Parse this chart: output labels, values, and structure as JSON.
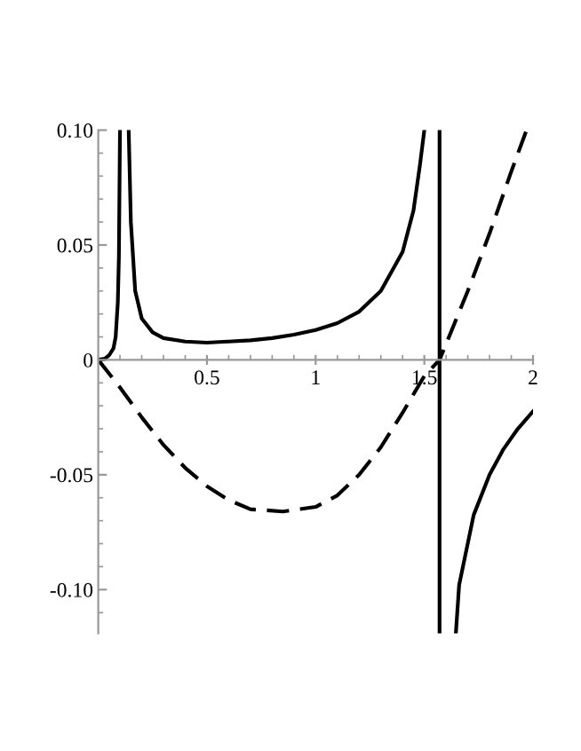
{
  "chart_data": {
    "type": "line",
    "xlim": [
      0,
      2
    ],
    "ylim": [
      -0.119,
      0.1
    ],
    "xticks": [
      0.5,
      1,
      1.5,
      2
    ],
    "yticks": [
      {
        "value": -0.1,
        "label": "-0.10"
      },
      {
        "value": -0.05,
        "label": "-0.05"
      },
      0,
      {
        "value": 0.05,
        "label": "0.05"
      },
      {
        "value": 0.1,
        "label": "0.10"
      }
    ],
    "grid": false,
    "legend": false,
    "series": [
      {
        "color": "#000000",
        "line_style": "solid",
        "x": [
          0,
          0.03,
          0.05,
          0.07,
          0.08,
          0.09,
          0.095,
          0.1,
          0.12,
          0.14,
          0.15,
          0.17,
          0.2,
          0.25,
          0.3,
          0.4,
          0.5,
          0.6,
          0.7,
          0.8,
          0.9,
          1.0,
          1.1,
          1.2,
          1.3,
          1.4,
          1.45,
          1.48,
          1.5,
          1.6,
          1.645,
          1.66,
          1.727,
          1.8,
          1.863,
          1.93,
          2.0
        ],
        "values": [
          0,
          0.0005,
          0.002,
          0.005,
          0.01,
          0.025,
          0.045,
          0.1,
          null,
          0.1,
          0.06,
          0.03,
          0.018,
          0.012,
          0.0095,
          0.008,
          0.0075,
          0.008,
          0.0085,
          0.0095,
          0.011,
          0.013,
          0.016,
          0.021,
          0.03,
          0.047,
          0.065,
          0.085,
          0.1,
          null,
          -0.119,
          -0.098,
          -0.0675,
          -0.05,
          -0.039,
          -0.03,
          -0.0224
        ]
      },
      {
        "color": "#000000",
        "line_style": "dashed",
        "x": [
          0,
          0.1,
          0.2,
          0.3,
          0.4,
          0.5,
          0.6,
          0.7,
          0.85,
          1.0,
          1.1,
          1.2,
          1.3,
          1.4,
          1.5,
          1.57,
          1.7,
          1.8,
          1.9,
          1.97
        ],
        "values": [
          0,
          -0.012,
          -0.025,
          -0.037,
          -0.047,
          -0.055,
          -0.061,
          -0.065,
          -0.066,
          -0.064,
          -0.059,
          -0.05,
          -0.038,
          -0.023,
          -0.007,
          0.0,
          0.03,
          0.055,
          0.082,
          0.1
        ]
      }
    ],
    "ref_lines": [
      {
        "axis": "x",
        "value": 1.57,
        "color": "#000000",
        "line_style": "solid"
      }
    ]
  }
}
